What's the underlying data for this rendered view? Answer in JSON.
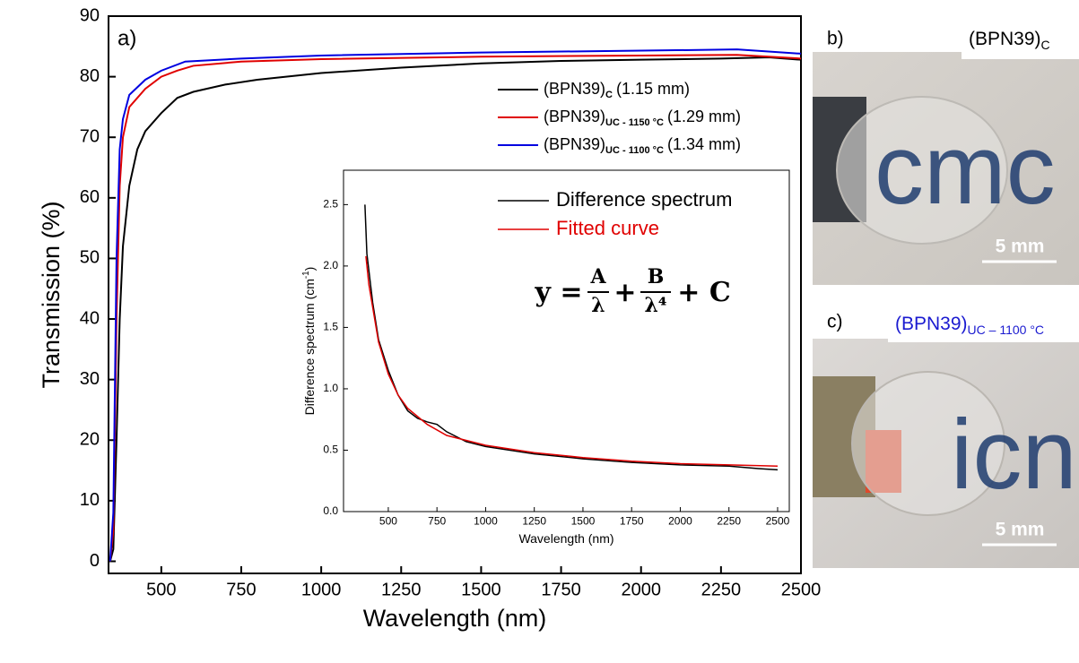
{
  "chart_data": [
    {
      "type": "line",
      "panel": "a)",
      "xlabel": "Wavelength (nm)",
      "ylabel": "Transmission (%)",
      "xlim": [
        335,
        2500
      ],
      "ylim": [
        -2,
        90
      ],
      "xticks": [
        500,
        750,
        1000,
        1250,
        1500,
        1750,
        2000,
        2250,
        2500
      ],
      "yticks": [
        0,
        10,
        20,
        30,
        40,
        50,
        60,
        70,
        80,
        90
      ],
      "series": [
        {
          "name": "(BPN39)",
          "subscript": "C",
          "thickness": "(1.15 mm)",
          "color": "#000000",
          "x": [
            340,
            350,
            360,
            370,
            380,
            400,
            425,
            450,
            500,
            550,
            600,
            700,
            800,
            1000,
            1250,
            1500,
            1750,
            2000,
            2250,
            2400,
            2500
          ],
          "values": [
            0,
            2,
            20,
            40,
            52,
            62,
            68,
            71,
            74,
            76.5,
            77.5,
            78.7,
            79.5,
            80.6,
            81.5,
            82.2,
            82.6,
            82.8,
            83,
            83.2,
            82.8
          ]
        },
        {
          "name": "(BPN39)",
          "subscript": "UC - 1150 °C",
          "thickness": "(1.29 mm)",
          "color": "#e00000",
          "x": [
            340,
            350,
            360,
            370,
            380,
            400,
            450,
            500,
            550,
            600,
            750,
            1000,
            1500,
            2000,
            2300,
            2500
          ],
          "values": [
            0,
            5,
            40,
            62,
            70,
            75,
            78,
            80,
            81,
            81.8,
            82.5,
            82.9,
            83.3,
            83.5,
            83.6,
            83
          ]
        },
        {
          "name": "(BPN39)",
          "subscript": "UC - 1100 °C",
          "thickness": "(1.34 mm)",
          "color": "#0000e0",
          "x": [
            340,
            350,
            360,
            370,
            380,
            400,
            450,
            500,
            575,
            750,
            1000,
            1500,
            2000,
            2300,
            2500
          ],
          "values": [
            0,
            8,
            50,
            68,
            73,
            77,
            79.5,
            81,
            82.5,
            83,
            83.5,
            84,
            84.3,
            84.5,
            83.8
          ]
        }
      ]
    },
    {
      "type": "line",
      "xlabel": "Wavelength (nm)",
      "ylabel": "Difference spectrum (cm",
      "ylabel_sup": "-1",
      "ylabel_end": ")",
      "xlim": [
        270,
        2560
      ],
      "ylim": [
        0,
        2.78
      ],
      "xticks": [
        500,
        750,
        1000,
        1250,
        1500,
        1750,
        2000,
        2250,
        2500
      ],
      "yticks": [
        {
          "value": 0,
          "label": "0.0"
        },
        {
          "value": 0.5,
          "label": "0.5"
        },
        {
          "value": 1,
          "label": "1.0"
        },
        {
          "value": 1.5,
          "label": "1.5"
        },
        {
          "value": 2,
          "label": "2.0"
        },
        {
          "value": 2.5,
          "label": "2.5"
        }
      ],
      "equation": [
        "y =",
        "A",
        "λ",
        "+",
        "B",
        "λ⁴",
        "+ C"
      ],
      "series": [
        {
          "name": "Difference spectrum",
          "color": "#000000",
          "x": [
            380,
            390,
            420,
            450,
            500,
            550,
            600,
            650,
            700,
            750,
            800,
            900,
            1000,
            1250,
            1500,
            1750,
            2000,
            2250,
            2400,
            2500
          ],
          "values": [
            2.5,
            2.1,
            1.7,
            1.4,
            1.15,
            0.95,
            0.82,
            0.76,
            0.73,
            0.71,
            0.65,
            0.57,
            0.53,
            0.47,
            0.43,
            0.4,
            0.38,
            0.37,
            0.35,
            0.34
          ]
        },
        {
          "name": "Fitted curve",
          "color": "#e00000",
          "x": [
            385,
            400,
            450,
            500,
            550,
            600,
            700,
            800,
            1000,
            1250,
            1500,
            1750,
            2000,
            2250,
            2500
          ],
          "values": [
            2.08,
            1.85,
            1.38,
            1.12,
            0.95,
            0.84,
            0.71,
            0.62,
            0.54,
            0.48,
            0.44,
            0.41,
            0.39,
            0.38,
            0.37
          ]
        }
      ]
    }
  ],
  "photos": [
    {
      "panel": "b)",
      "name": "(BPN39)",
      "subscript": "C",
      "scale": "5 mm",
      "print": "cmc"
    },
    {
      "panel": "c)",
      "name": "(BPN39)",
      "subscript": "UC – 1100 °C",
      "scale": "5 mm",
      "print": "icn"
    }
  ]
}
